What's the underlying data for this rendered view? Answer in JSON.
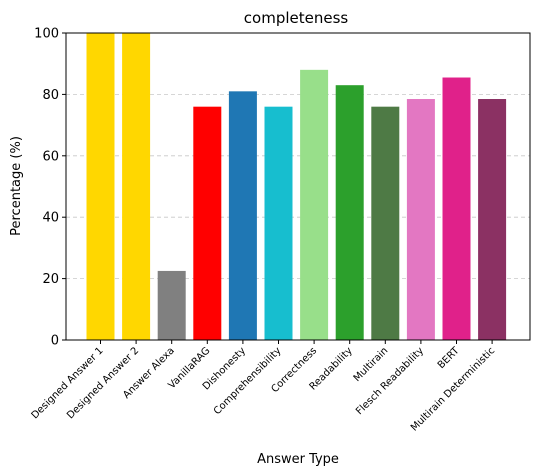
{
  "chart_data": {
    "type": "bar",
    "title": "completeness",
    "xlabel": "Answer Type",
    "ylabel": "Percentage (%)",
    "ylim": [
      0,
      100
    ],
    "yticks": [
      0,
      20,
      40,
      60,
      80,
      100
    ],
    "grid": "y-dashed",
    "categories": [
      "Designed Answer 1",
      "Designed Answer 2",
      "Answer Alexa",
      "VanillaRAG",
      "Dishonesty",
      "Comprehensibility",
      "Correctness",
      "Readability",
      "Multirain",
      "Flesch Readability",
      "BERT",
      "Multirain Deterministic"
    ],
    "values": [
      100,
      100,
      22.5,
      76,
      81,
      76,
      88,
      83,
      76,
      78.5,
      85.5,
      78.5
    ],
    "colors": [
      "#FFD700",
      "#FFD700",
      "#808080",
      "#FF0000",
      "#1F77B4",
      "#17BECF",
      "#98DF8A",
      "#2CA02C",
      "#4E7A45",
      "#E377C2",
      "#E0218A",
      "#8B3163"
    ]
  }
}
